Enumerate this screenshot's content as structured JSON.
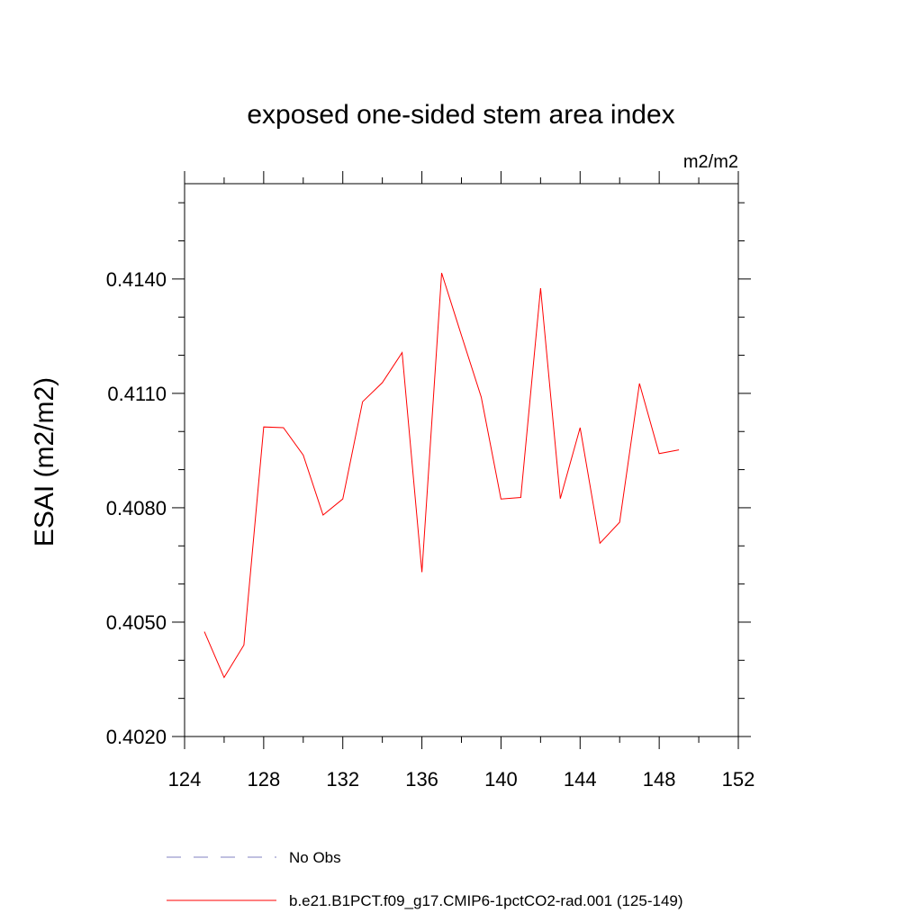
{
  "chart_data": {
    "type": "line",
    "title": "exposed one-sided stem area index",
    "units_label": "m2/m2",
    "xlabel": "",
    "ylabel": "ESAI  (m2/m2)",
    "xlim": [
      124,
      152
    ],
    "ylim": [
      0.402,
      0.4165
    ],
    "x_ticks": [
      124,
      128,
      132,
      136,
      140,
      144,
      148,
      152
    ],
    "y_ticks": [
      0.402,
      0.405,
      0.408,
      0.411,
      0.414
    ],
    "y_tick_labels": [
      "0.4020",
      "0.4050",
      "0.4080",
      "0.4110",
      "0.4140"
    ],
    "series": [
      {
        "name": "b.e21.B1PCT.f09_g17.CMIP6-1pctCO2-rad.001 (125-149)",
        "color": "#ff0000",
        "style": "solid",
        "x": [
          125,
          126,
          127,
          128,
          129,
          130,
          131,
          132,
          133,
          134,
          135,
          136,
          137,
          138,
          139,
          140,
          141,
          142,
          143,
          144,
          145,
          146,
          147,
          148,
          149
        ],
        "y": [
          0.40475,
          0.40355,
          0.4044,
          0.41012,
          0.4101,
          0.40938,
          0.40781,
          0.40823,
          0.41078,
          0.41128,
          0.41207,
          0.40631,
          0.41416,
          0.41252,
          0.4109,
          0.40823,
          0.40827,
          0.41376,
          0.40824,
          0.4101,
          0.40707,
          0.40762,
          0.41126,
          0.40942,
          0.40952
        ]
      }
    ],
    "legend": [
      {
        "label": "No Obs",
        "color": "#8080c0",
        "style": "dashed"
      },
      {
        "label": "b.e21.B1PCT.f09_g17.CMIP6-1pctCO2-rad.001 (125-149)",
        "color": "#ff0000",
        "style": "solid"
      }
    ],
    "legend_position": "bottom",
    "grid": false
  }
}
